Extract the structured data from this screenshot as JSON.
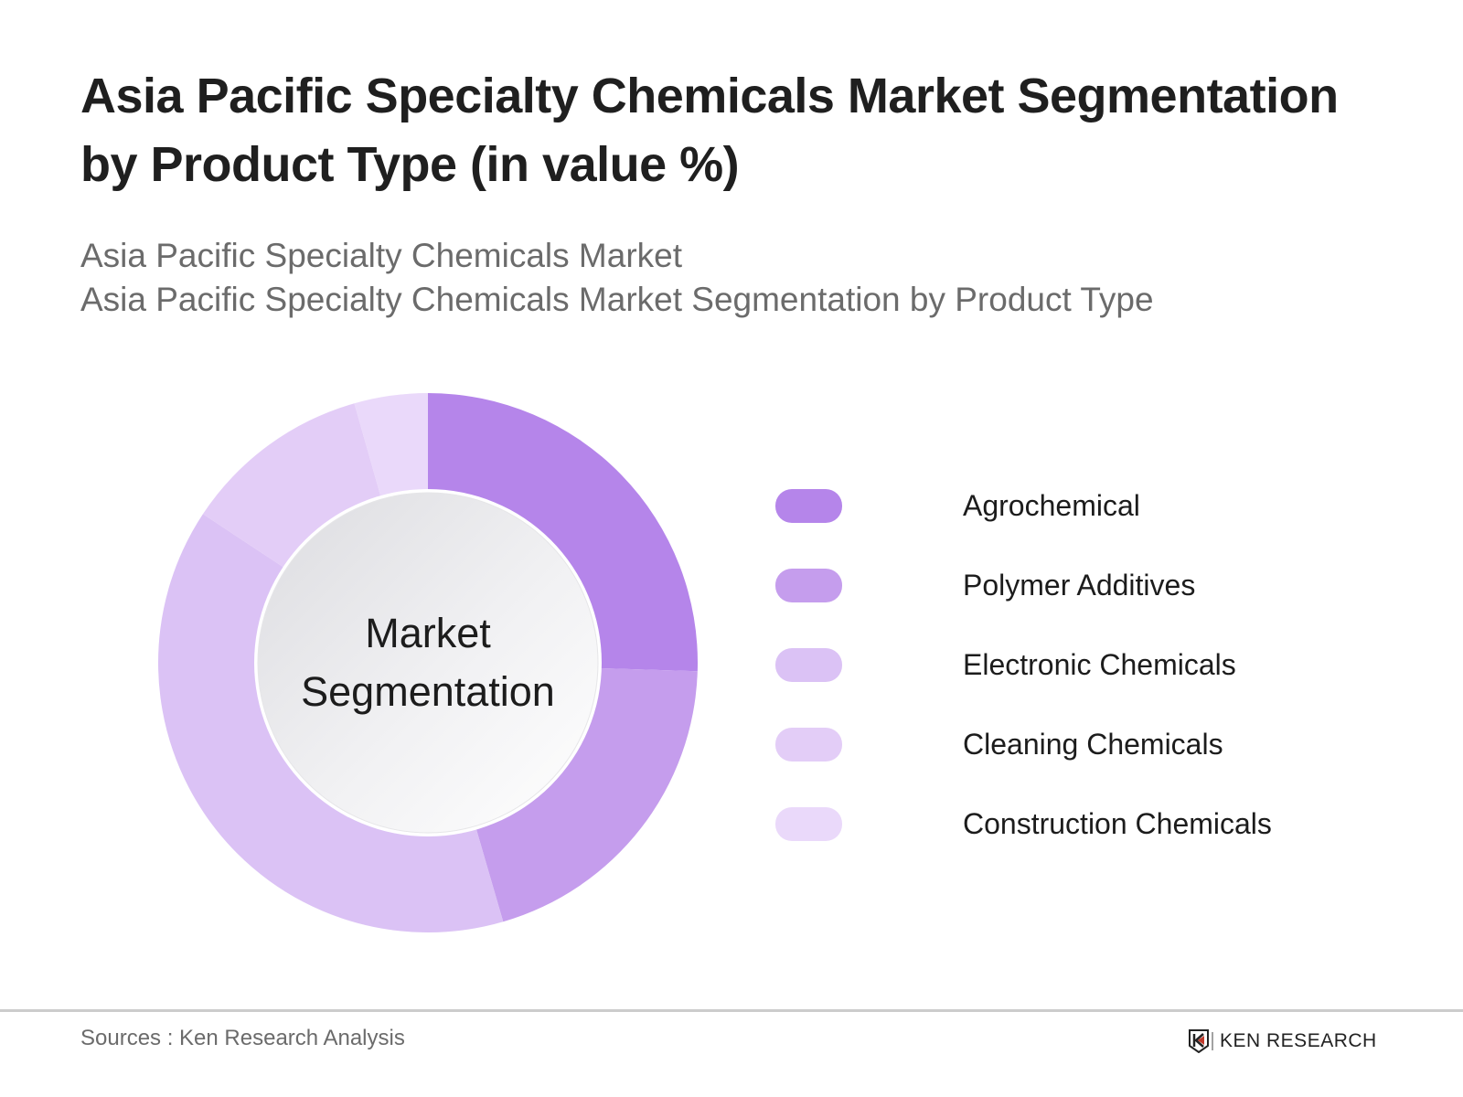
{
  "header": {
    "title": "Asia Pacific Specialty Chemicals Market Segmentation by Product Type (in value %)",
    "subtitle_line1": "Asia Pacific Specialty Chemicals Market",
    "subtitle_line2": "Asia Pacific Specialty Chemicals Market Segmentation by Product Type"
  },
  "center_label": {
    "line1": "Market",
    "line2": "Segmentation"
  },
  "legend": [
    {
      "label": "Agrochemical",
      "color": "#b585ea"
    },
    {
      "label": "Polymer Additives",
      "color": "#c59ded"
    },
    {
      "label": "Electronic Chemicals",
      "color": "#dbc2f5"
    },
    {
      "label": "Cleaning Chemicals",
      "color": "#e3cdf7"
    },
    {
      "label": "Construction Chemicals",
      "color": "#ead9fa"
    }
  ],
  "footer": {
    "source": "Sources : Ken Research Analysis",
    "logo_text": "KEN RESEARCH",
    "logo_accent": "#c0392b"
  },
  "chart_data": {
    "type": "pie",
    "subtype": "donut",
    "title": "Asia Pacific Specialty Chemicals Market Segmentation by Product Type (in value %)",
    "subtitle": "Asia Pacific Specialty Chemicals Market / Asia Pacific Specialty Chemicals Market Segmentation by Product Type",
    "center_text": "Market Segmentation",
    "categories": [
      "Agrochemical",
      "Polymer Additives",
      "Electronic Chemicals",
      "Cleaning Chemicals",
      "Construction Chemicals"
    ],
    "values": [
      25.5,
      20.0,
      38.8,
      11.3,
      4.4
    ],
    "unit": "%",
    "colors": [
      "#b585ea",
      "#c59ded",
      "#dbc2f5",
      "#e3cdf7",
      "#ead9fa"
    ],
    "start_angle_deg": 0,
    "direction": "clockwise",
    "legend_position": "right",
    "data_labels_shown": false
  }
}
